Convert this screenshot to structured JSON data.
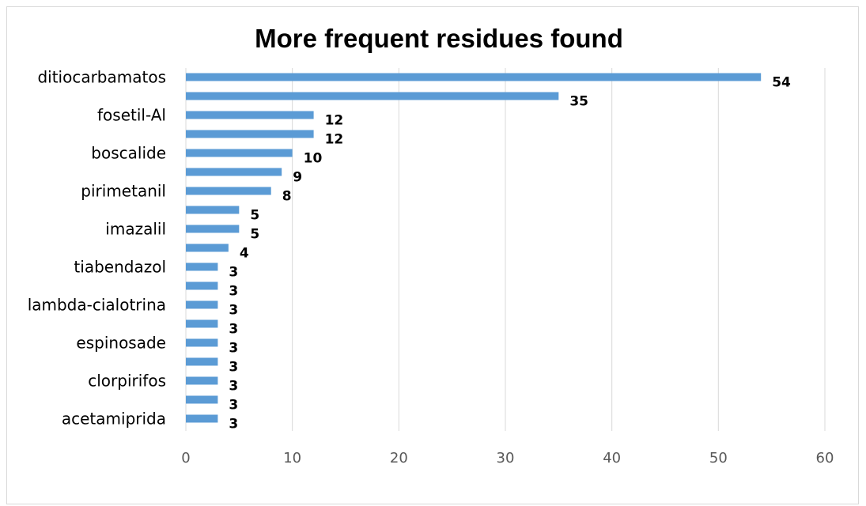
{
  "chart_data": {
    "type": "bar",
    "orientation": "horizontal",
    "title": "More frequent residues found",
    "categories": [
      "ditiocarbamatos",
      "",
      "fosetil-Al",
      "",
      "boscalide",
      "",
      "pirimetanil",
      "",
      "imazalil",
      "",
      "tiabendazol",
      "",
      "lambda-cialotrina",
      "",
      "espinosade",
      "",
      "clorpirifos",
      "",
      "acetamiprida"
    ],
    "values": [
      54,
      35,
      12,
      12,
      10,
      9,
      8,
      5,
      5,
      4,
      3,
      3,
      3,
      3,
      3,
      3,
      3,
      3,
      3
    ],
    "data_labels": [
      "54",
      "35",
      "12",
      "12",
      "10",
      "9",
      "8",
      "5",
      "5",
      "4",
      "3",
      "3",
      "3",
      "3",
      "3",
      "3",
      "3",
      "3",
      "3"
    ],
    "x_ticks": [
      "0",
      "10",
      "20",
      "30",
      "40",
      "50",
      "60"
    ],
    "xlim": [
      0,
      60
    ],
    "xlabel": "",
    "ylabel": "",
    "grid": "vertical",
    "legend": "none",
    "bar_color": "#5B9BD5",
    "grid_color": "#d9d9d9"
  }
}
